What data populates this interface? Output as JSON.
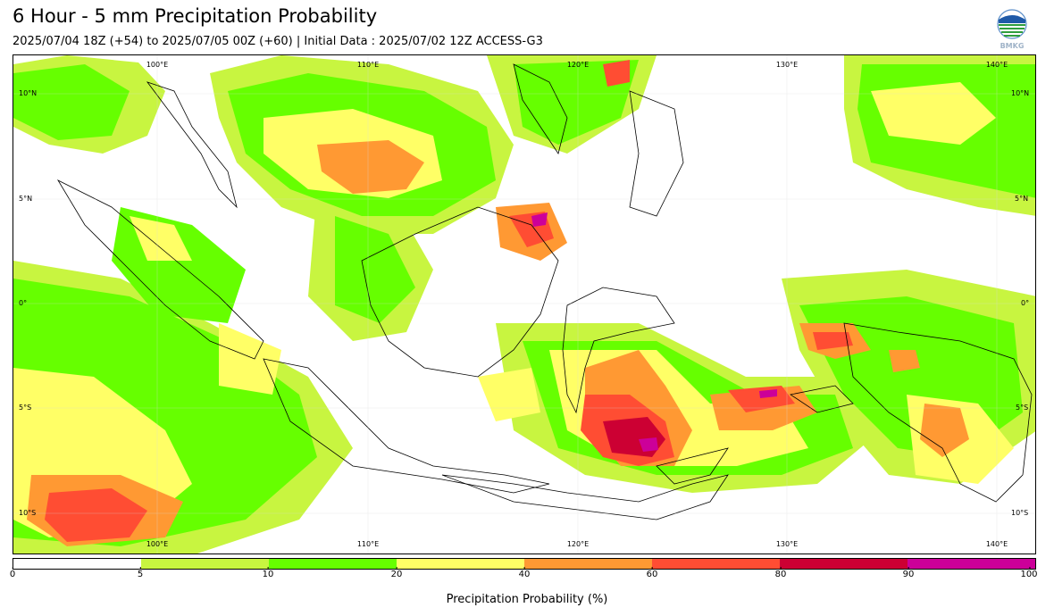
{
  "header": {
    "title": "6 Hour - 5 mm Precipitation Probability",
    "subtitle": "2025/07/04 18Z (+54) to 2025/07/05 00Z (+60) | Initial Data : 2025/07/02 12Z ACCESS-G3",
    "logo_text": "BMKG"
  },
  "map": {
    "lon_labels_top": [
      "100°E",
      "110°E",
      "120°E",
      "130°E",
      "140°E"
    ],
    "lon_labels_bottom": [
      "100°E",
      "110°E",
      "120°E",
      "130°E",
      "140°E"
    ],
    "lat_labels_left": [
      "10°N",
      "5°N",
      "0°",
      "5°S",
      "10°S"
    ],
    "lat_labels_right": [
      "10°N",
      "5°N",
      "0°",
      "5°S",
      "10°S"
    ]
  },
  "colorbar": {
    "label": "Precipitation Probability (%)",
    "ticks": [
      "0",
      "5",
      "10",
      "20",
      "40",
      "60",
      "80",
      "90",
      "100"
    ],
    "colors": [
      "#ffffff",
      "#c8f540",
      "#66ff00",
      "#ffff66",
      "#ff9933",
      "#ff4d33",
      "#cc0033",
      "#cc0099"
    ]
  }
}
